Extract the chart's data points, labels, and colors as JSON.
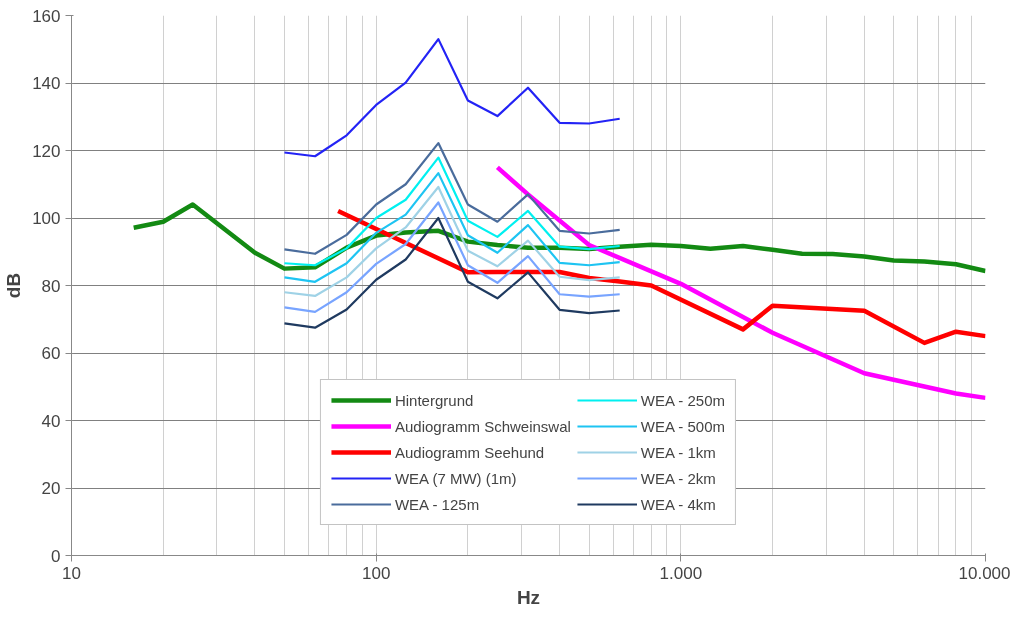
{
  "chart_data": {
    "type": "line",
    "xlabel": "Hz",
    "ylabel": "dB",
    "log": "x",
    "grid": true,
    "legend": "bottom",
    "xlim": [
      10,
      10000
    ],
    "xticks": [
      10,
      100,
      {
        "value": 1000,
        "label": "1.000"
      },
      {
        "value": 10000,
        "label": "10.000"
      }
    ],
    "ylim": [
      0,
      160
    ],
    "yticks": [
      0,
      20,
      40,
      60,
      80,
      100,
      120,
      140,
      160
    ],
    "series": [
      {
        "name": "Hintergrund",
        "color": "#138a13",
        "x": [
          16,
          20,
          25,
          40,
          50,
          63,
          80,
          100,
          125,
          160,
          200,
          250,
          315,
          400,
          500,
          630,
          800,
          1000,
          1250,
          1600,
          2000,
          2500,
          3150,
          4000,
          5000,
          6300,
          8000,
          10000
        ],
        "values": [
          97.1,
          98.9,
          104,
          89.7,
          85,
          85.4,
          91.2,
          94.8,
          95.7,
          96.2,
          93,
          92,
          91.2,
          91.2,
          90.8,
          91.5,
          92.1,
          91.7,
          90.9,
          91.7,
          90.6,
          89.4,
          89.3,
          88.6,
          87.4,
          87.1,
          86.3,
          84.3
        ]
      },
      {
        "name": "Audiogramm Schweinswal",
        "color": "#ff00ff",
        "x": [
          250,
          315,
          500,
          1000,
          2000,
          4000,
          8000,
          10000
        ],
        "values": [
          115,
          107,
          92,
          80.5,
          66,
          54,
          48,
          46.7
        ]
      },
      {
        "name": "Audiogramm Seehund",
        "color": "#ff0000",
        "x": [
          75,
          200,
          250,
          315,
          400,
          500,
          630,
          800,
          1600,
          2000,
          4000,
          6300,
          8000,
          10000
        ],
        "values": [
          102.1,
          83.9,
          84,
          84,
          84,
          82.2,
          81.2,
          80,
          67,
          74,
          72.5,
          63,
          66.3,
          65
        ]
      },
      {
        "name": "WEA (7 MW) (1m)",
        "color": "#2323f5",
        "x": [
          50,
          63,
          80,
          100,
          125,
          160,
          200,
          250,
          315,
          400,
          500,
          630
        ],
        "values": [
          119.4,
          118.3,
          124.5,
          133.5,
          140.1,
          153,
          134.8,
          130.2,
          138.6,
          128.2,
          128,
          129.4
        ]
      },
      {
        "name": "WEA - 125m",
        "color": "#4a6c9c",
        "x": [
          50,
          63,
          80,
          100,
          125,
          160,
          200,
          250,
          315,
          400,
          500,
          630
        ],
        "values": [
          90.7,
          89.4,
          95,
          104,
          110,
          122.2,
          104,
          98.9,
          107,
          96.2,
          95.4,
          96.5
        ]
      },
      {
        "name": "WEA - 250m",
        "color": "#00f0f0",
        "x": [
          50,
          63,
          80,
          100,
          125,
          160,
          200,
          250,
          315,
          400,
          500,
          630
        ],
        "values": [
          86.6,
          86,
          91,
          100,
          105.4,
          117.9,
          99.2,
          94.4,
          102.1,
          91.5,
          90.8,
          91.7
        ]
      },
      {
        "name": "WEA - 500m",
        "color": "#1ec4f2",
        "x": [
          50,
          63,
          80,
          100,
          125,
          160,
          200,
          250,
          315,
          400,
          500,
          630
        ],
        "values": [
          82.4,
          81.1,
          86.6,
          95.6,
          101,
          113.3,
          94.9,
          89.7,
          97.9,
          86.7,
          86,
          86.9
        ]
      },
      {
        "name": "WEA - 1km",
        "color": "#9fd2e6",
        "x": [
          50,
          63,
          80,
          100,
          125,
          160,
          200,
          250,
          315,
          400,
          500,
          630
        ],
        "values": [
          78,
          76.9,
          82.4,
          91,
          97.2,
          109.2,
          90.3,
          85.7,
          93.3,
          82.6,
          81.6,
          82.4
        ]
      },
      {
        "name": "WEA - 2km",
        "color": "#78a4ff",
        "x": [
          50,
          63,
          80,
          100,
          125,
          160,
          200,
          250,
          315,
          400,
          500,
          630
        ],
        "values": [
          73.5,
          72.2,
          78,
          86.4,
          92.3,
          104.6,
          86,
          80.8,
          88.7,
          77.4,
          76.7,
          77.4
        ]
      },
      {
        "name": "WEA - 4km",
        "color": "#1f3a60",
        "x": [
          50,
          63,
          80,
          100,
          125,
          160,
          200,
          250,
          315,
          400,
          500,
          630
        ],
        "values": [
          68.8,
          67.5,
          72.9,
          81.7,
          87.7,
          100,
          81.1,
          76.2,
          83.9,
          72.8,
          71.8,
          72.6
        ]
      }
    ]
  }
}
